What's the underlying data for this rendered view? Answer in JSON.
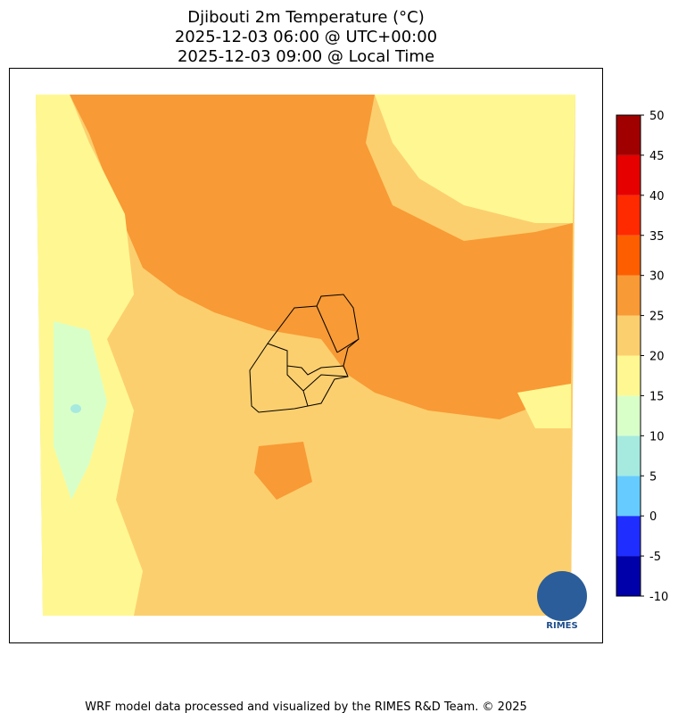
{
  "title": [
    "Djibouti 2m Temperature (°C)",
    "2025-12-03 06:00 @ UTC+00:00",
    "2025-12-03 09:00 @ Local Time"
  ],
  "colorbar": {
    "ticks": [
      -10,
      -5,
      0,
      5,
      10,
      15,
      20,
      25,
      30,
      35,
      40,
      45,
      50
    ],
    "colors": [
      "#0000aa",
      "#1f2eff",
      "#66ccff",
      "#a6eadf",
      "#d9ffc9",
      "#fff892",
      "#fccf6e",
      "#f89a35",
      "#fd5f00",
      "#ff2a00",
      "#e60000",
      "#a00000"
    ]
  },
  "logo_text": "RIMES",
  "footer": "WRF model data processed and visualized by the RIMES R&D Team. © 2025"
}
